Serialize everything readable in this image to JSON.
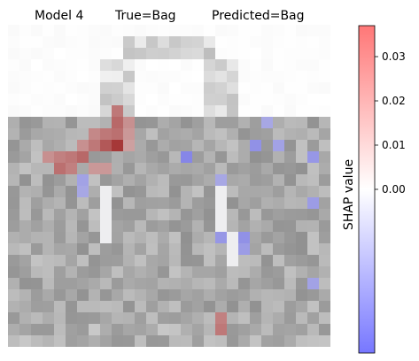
{
  "chart_data": {
    "type": "heatmap",
    "title_parts": [
      "Model 4",
      "True=Bag",
      "Predicted=Bag"
    ],
    "colorbar": {
      "label": "SHAP value",
      "range": [
        -0.037,
        0.037
      ],
      "ticks": [
        0.0,
        0.01,
        0.02,
        0.03
      ],
      "tick_labels": [
        "0.00",
        "0.01",
        "0.02",
        "0.03"
      ],
      "colors": {
        "negative": "#7777ff",
        "zero": "#ffffff",
        "positive": "#ff7777"
      }
    },
    "grid": {
      "rows": 28,
      "cols": 28
    },
    "axes_visible": false
  }
}
